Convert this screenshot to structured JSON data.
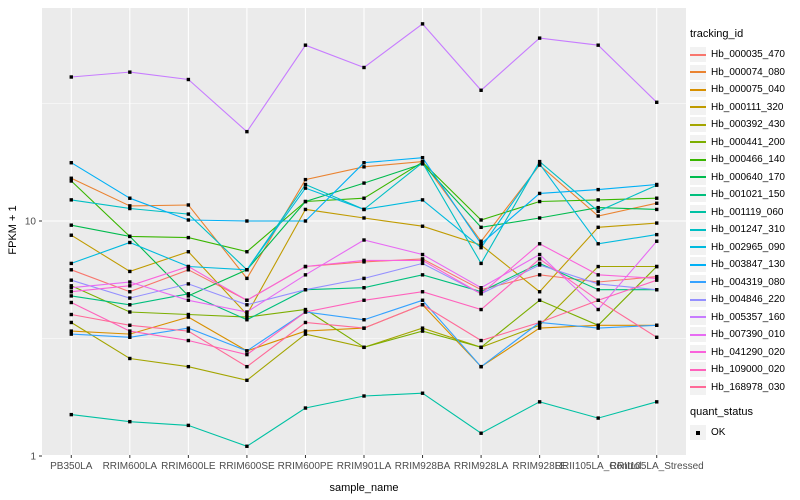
{
  "chart_data": {
    "type": "line",
    "title": "",
    "xlabel": "sample_name",
    "ylabel": "FPKM + 1",
    "y_scale": "log10",
    "y_ticks": [
      1,
      10
    ],
    "y_minor_ticks": [
      3.162,
      31.62
    ],
    "ylim": [
      1,
      80
    ],
    "grid": true,
    "panel_bg": "#EBEBEB",
    "grid_color": "#FFFFFF",
    "tick_label_color": "#4D4D4D",
    "point_marker": {
      "shape": "square",
      "color": "#000000"
    },
    "legend_position": "right",
    "categories": [
      "PB350LA",
      "RRIM600LA",
      "RRIM600LE",
      "RRIM600SE",
      "RRIM600PE",
      "RRIM901LA",
      "RRIM928BA",
      "RRIM928LA",
      "RRIM928LE",
      "RRII105LA_Control",
      "RRII105LA_Stressed"
    ],
    "series": [
      {
        "name": "Hb_000035_470",
        "color": "#F8766D",
        "values": [
          6.2,
          5.0,
          6.2,
          4.6,
          6.4,
          6.7,
          6.9,
          5.1,
          5.9,
          5.5,
          5.8
        ]
      },
      {
        "name": "Hb_000074_080",
        "color": "#EA8331",
        "values": [
          15.2,
          11.6,
          11.7,
          5.7,
          15.0,
          17.0,
          17.9,
          8.2,
          17.3,
          10.5,
          11.9
        ]
      },
      {
        "name": "Hb_000075_040",
        "color": "#D89000",
        "values": [
          3.4,
          3.3,
          3.9,
          2.8,
          3.4,
          3.5,
          4.4,
          2.4,
          3.5,
          3.6,
          3.6
        ]
      },
      {
        "name": "Hb_000111_320",
        "color": "#C09B00",
        "values": [
          8.7,
          6.1,
          7.4,
          4.0,
          11.2,
          10.3,
          9.5,
          7.9,
          5.0,
          9.4,
          9.8
        ]
      },
      {
        "name": "Hb_000392_430",
        "color": "#A3A500",
        "values": [
          3.7,
          2.6,
          2.4,
          2.1,
          3.3,
          2.9,
          3.5,
          2.9,
          3.6,
          6.4,
          6.4
        ]
      },
      {
        "name": "Hb_000441_200",
        "color": "#7CAE00",
        "values": [
          5.3,
          4.1,
          4.0,
          3.9,
          4.2,
          2.9,
          3.4,
          2.9,
          4.6,
          3.6,
          6.4
        ]
      },
      {
        "name": "Hb_000466_140",
        "color": "#39B600",
        "values": [
          14.8,
          8.6,
          8.5,
          7.4,
          12.1,
          12.5,
          17.8,
          10.1,
          12.1,
          12.3,
          12.5
        ]
      },
      {
        "name": "Hb_000640_170",
        "color": "#00BB4E",
        "values": [
          9.6,
          8.6,
          4.8,
          6.2,
          12.1,
          14.5,
          17.5,
          9.4,
          10.3,
          11.4,
          11.2
        ]
      },
      {
        "name": "Hb_001021_150",
        "color": "#00BF7D",
        "values": [
          4.8,
          4.4,
          4.9,
          3.8,
          5.1,
          5.2,
          5.9,
          5.0,
          6.6,
          5.1,
          5.1
        ]
      },
      {
        "name": "Hb_001119_060",
        "color": "#00C1A3",
        "values": [
          1.5,
          1.4,
          1.35,
          1.1,
          1.6,
          1.8,
          1.85,
          1.25,
          1.7,
          1.45,
          1.7
        ]
      },
      {
        "name": "Hb_001247_310",
        "color": "#00BFC4",
        "values": [
          12.3,
          11.3,
          10.7,
          6.2,
          14.3,
          11.2,
          17.7,
          6.6,
          17.9,
          11.0,
          14.2
        ]
      },
      {
        "name": "Hb_002965_090",
        "color": "#00BADE",
        "values": [
          6.6,
          8.1,
          6.4,
          6.2,
          13.8,
          11.2,
          12.3,
          7.7,
          17.5,
          8.0,
          8.75
        ]
      },
      {
        "name": "Hb_003847_130",
        "color": "#00B0F6",
        "values": [
          17.7,
          12.5,
          10.1,
          10.0,
          10.0,
          17.7,
          18.6,
          8.0,
          13.1,
          13.6,
          14.3
        ]
      },
      {
        "name": "Hb_004319_080",
        "color": "#35A2FF",
        "values": [
          3.3,
          3.2,
          3.5,
          2.8,
          4.1,
          3.8,
          4.6,
          2.4,
          3.7,
          3.5,
          3.6
        ]
      },
      {
        "name": "Hb_004846_220",
        "color": "#9590FF",
        "values": [
          5.6,
          4.7,
          5.4,
          4.4,
          5.1,
          5.7,
          6.6,
          4.9,
          6.5,
          5.4,
          5.1
        ]
      },
      {
        "name": "Hb_005357_160",
        "color": "#C77CFF",
        "values": [
          41,
          43,
          40,
          24,
          56,
          45,
          69,
          36,
          60,
          56,
          32
        ]
      },
      {
        "name": "Hb_007390_010",
        "color": "#E76BF3",
        "values": [
          5.2,
          5.5,
          4.6,
          4.1,
          5.9,
          8.3,
          7.2,
          5.2,
          7.2,
          4.2,
          8.2
        ]
      },
      {
        "name": "Hb_041290_020",
        "color": "#FA62DB",
        "values": [
          5.0,
          5.3,
          6.4,
          4.6,
          6.4,
          6.8,
          6.8,
          4.9,
          8.0,
          5.9,
          5.7
        ]
      },
      {
        "name": "Hb_109000_020",
        "color": "#FF62BC",
        "values": [
          4.5,
          3.4,
          3.1,
          2.7,
          4.1,
          4.6,
          5.0,
          4.2,
          6.9,
          4.6,
          5.6
        ]
      },
      {
        "name": "Hb_168978_030",
        "color": "#FF6A98",
        "values": [
          4.0,
          3.6,
          3.4,
          2.4,
          3.7,
          3.5,
          4.4,
          3.1,
          3.7,
          4.6,
          3.2
        ]
      }
    ]
  },
  "legend": {
    "tracking_title": "tracking_id",
    "quant_title": "quant_status",
    "quant_items": [
      {
        "label": "OK",
        "marker": "black-square"
      }
    ],
    "key_bg": "#F2F2F2"
  },
  "axis": {
    "x_title": "sample_name",
    "y_title": "FPKM + 1",
    "y_tick_labels": [
      "10",
      "1"
    ]
  }
}
